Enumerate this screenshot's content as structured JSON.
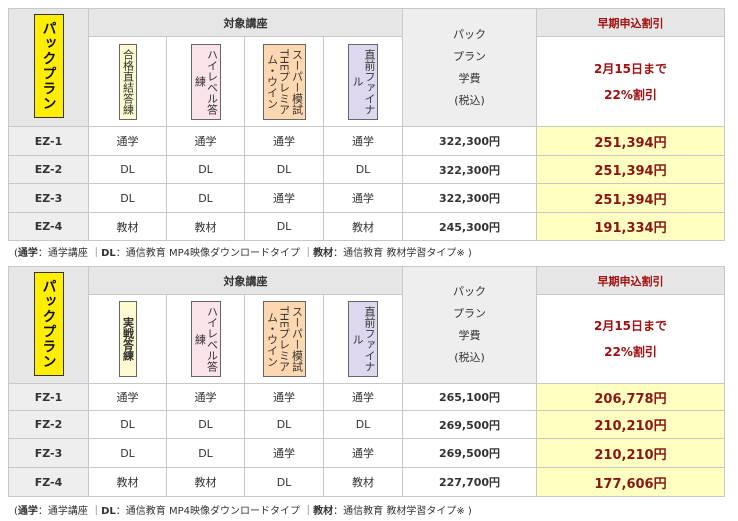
{
  "tables": [
    {
      "pack_label": "パックプラン",
      "course_header": "対象講座",
      "courses": [
        {
          "lines": [
            "合格直結答練"
          ]
        },
        {
          "lines": [
            "ハイレベル答練"
          ]
        },
        {
          "lines": [
            "スーパー模試",
            "THEプレミアム・ウイン"
          ]
        },
        {
          "lines": [
            "直前ファイナル"
          ]
        }
      ],
      "price_header": [
        "パック",
        "プラン",
        "学費",
        "(税込)"
      ],
      "discount_title": "早期申込割引",
      "discount_note": [
        "2月15日まで",
        "22%割引"
      ],
      "rows": [
        {
          "id": "EZ-1",
          "cells": [
            "通学",
            "通学",
            "通学",
            "通学"
          ],
          "price": "322,300円",
          "discount": "251,394円"
        },
        {
          "id": "EZ-2",
          "cells": [
            "DL",
            "DL",
            "DL",
            "DL"
          ],
          "price": "322,300円",
          "discount": "251,394円"
        },
        {
          "id": "EZ-3",
          "cells": [
            "DL",
            "DL",
            "通学",
            "通学"
          ],
          "price": "322,300円",
          "discount": "251,394円"
        },
        {
          "id": "EZ-4",
          "cells": [
            "教材",
            "教材",
            "DL",
            "教材"
          ],
          "price": "245,300円",
          "discount": "191,334円"
        }
      ],
      "note": [
        {
          "text": "(",
          "bold": false
        },
        {
          "text": "通学",
          "bold": true
        },
        {
          "text": "：通学講座 ｜",
          "bold": false
        },
        {
          "text": "DL",
          "bold": true
        },
        {
          "text": "：通信教育 MP4映像ダウンロードタイプ ｜",
          "bold": false
        },
        {
          "text": "教材",
          "bold": true
        },
        {
          "text": "：通信教育 教材学習タイプ※ )",
          "bold": false
        }
      ]
    },
    {
      "pack_label": "パックプラン",
      "course_header": "対象講座",
      "courses": [
        {
          "lines": [
            "実戦答練"
          ]
        },
        {
          "lines": [
            "ハイレベル答練"
          ]
        },
        {
          "lines": [
            "スーパー模試",
            "THEプレミアム・ウイン"
          ]
        },
        {
          "lines": [
            "直前ファイナル"
          ]
        }
      ],
      "price_header": [
        "パック",
        "プラン",
        "学費",
        "(税込)"
      ],
      "discount_title": "早期申込割引",
      "discount_note": [
        "2月15日まで",
        "22%割引"
      ],
      "rows": [
        {
          "id": "FZ-1",
          "cells": [
            "通学",
            "通学",
            "通学",
            "通学"
          ],
          "price": "265,100円",
          "discount": "206,778円"
        },
        {
          "id": "FZ-2",
          "cells": [
            "DL",
            "DL",
            "DL",
            "DL"
          ],
          "price": "269,500円",
          "discount": "210,210円"
        },
        {
          "id": "FZ-3",
          "cells": [
            "DL",
            "DL",
            "通学",
            "通学"
          ],
          "price": "269,500円",
          "discount": "210,210円"
        },
        {
          "id": "FZ-4",
          "cells": [
            "教材",
            "教材",
            "DL",
            "教材"
          ],
          "price": "227,700円",
          "discount": "177,606円"
        }
      ],
      "note": [
        {
          "text": "(",
          "bold": false
        },
        {
          "text": "通学",
          "bold": true
        },
        {
          "text": "：通学講座 ｜",
          "bold": false
        },
        {
          "text": "DL",
          "bold": true
        },
        {
          "text": "：通信教育 MP4映像ダウンロードタイプ ｜",
          "bold": false
        },
        {
          "text": "教材",
          "bold": true
        },
        {
          "text": "：通信教育 教材学習タイプ※ )",
          "bold": false
        }
      ]
    }
  ]
}
